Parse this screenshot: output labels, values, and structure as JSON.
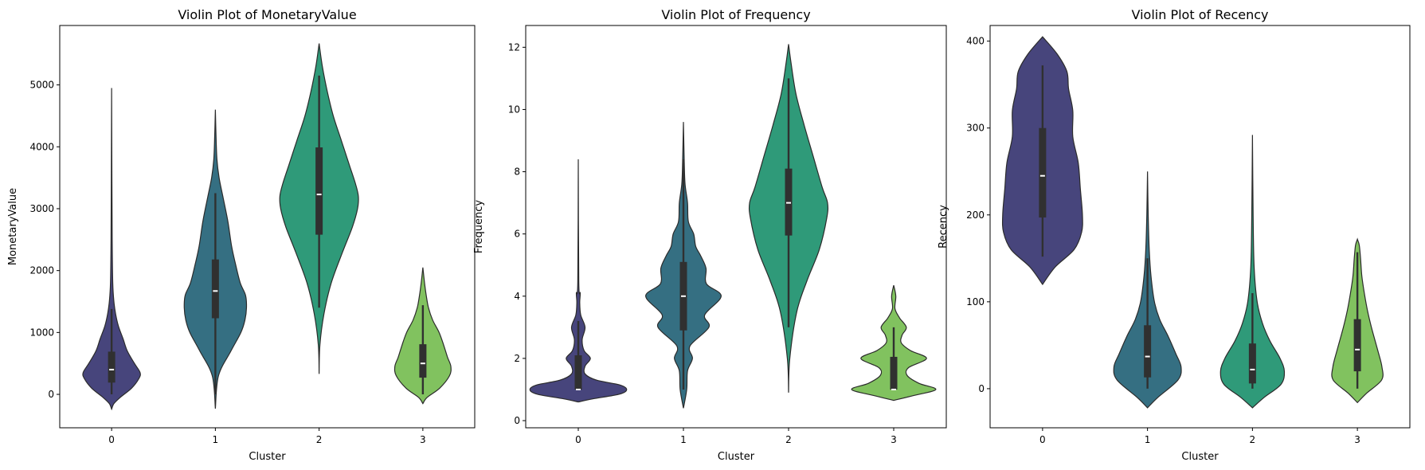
{
  "chart_data": [
    {
      "type": "violin",
      "title": "Violin Plot of MonetaryValue",
      "xlabel": "Cluster",
      "ylabel": "MonetaryValue",
      "categories": [
        "0",
        "1",
        "2",
        "3"
      ],
      "yticks": [
        0,
        1000,
        2000,
        3000,
        4000,
        5000
      ],
      "ylim": [
        -540,
        5960
      ],
      "colors": [
        "#47457c",
        "#356f82",
        "#2f9a79",
        "#81c25f"
      ],
      "violins": [
        {
          "profile": [
            [
              -240,
              0
            ],
            [
              -150,
              0.08
            ],
            [
              -50,
              0.3
            ],
            [
              100,
              0.7
            ],
            [
              250,
              0.95
            ],
            [
              350,
              1.0
            ],
            [
              500,
              0.8
            ],
            [
              700,
              0.55
            ],
            [
              900,
              0.4
            ],
            [
              1100,
              0.24
            ],
            [
              1300,
              0.14
            ],
            [
              1500,
              0.08
            ],
            [
              1800,
              0.04
            ],
            [
              2500,
              0.02
            ],
            [
              3500,
              0.01
            ],
            [
              4950,
              0
            ]
          ],
          "scale": 0.55,
          "box": {
            "q1": 190,
            "median": 400,
            "q3": 690,
            "wlo": 0,
            "whi": 1380
          }
        },
        {
          "profile": [
            [
              -230,
              0
            ],
            [
              300,
              0.1
            ],
            [
              700,
              0.5
            ],
            [
              1000,
              0.82
            ],
            [
              1200,
              0.95
            ],
            [
              1400,
              1.0
            ],
            [
              1600,
              0.97
            ],
            [
              1800,
              0.8
            ],
            [
              2100,
              0.65
            ],
            [
              2400,
              0.52
            ],
            [
              2800,
              0.4
            ],
            [
              3200,
              0.24
            ],
            [
              3500,
              0.12
            ],
            [
              3800,
              0.05
            ],
            [
              4200,
              0.02
            ],
            [
              4600,
              0
            ]
          ],
          "scale": 0.6,
          "box": {
            "q1": 1230,
            "median": 1670,
            "q3": 2180,
            "wlo": 0,
            "whi": 3250
          }
        },
        {
          "profile": [
            [
              330,
              0
            ],
            [
              800,
              0.02
            ],
            [
              1300,
              0.12
            ],
            [
              1800,
              0.3
            ],
            [
              2300,
              0.58
            ],
            [
              2700,
              0.82
            ],
            [
              3000,
              0.95
            ],
            [
              3200,
              0.97
            ],
            [
              3400,
              0.9
            ],
            [
              3700,
              0.75
            ],
            [
              4100,
              0.55
            ],
            [
              4500,
              0.35
            ],
            [
              4900,
              0.2
            ],
            [
              5300,
              0.08
            ],
            [
              5670,
              0
            ]
          ],
          "scale": 0.78,
          "box": {
            "q1": 2580,
            "median": 3230,
            "q3": 3990,
            "wlo": 1400,
            "whi": 5150
          }
        },
        {
          "profile": [
            [
              -150,
              0
            ],
            [
              -50,
              0.15
            ],
            [
              100,
              0.6
            ],
            [
              300,
              0.95
            ],
            [
              450,
              1.0
            ],
            [
              600,
              0.88
            ],
            [
              800,
              0.74
            ],
            [
              1000,
              0.58
            ],
            [
              1200,
              0.35
            ],
            [
              1400,
              0.2
            ],
            [
              1600,
              0.12
            ],
            [
              1800,
              0.06
            ],
            [
              2050,
              0
            ]
          ],
          "scale": 0.54,
          "box": {
            "q1": 270,
            "median": 500,
            "q3": 810,
            "wlo": 0,
            "whi": 1440
          }
        }
      ]
    },
    {
      "type": "violin",
      "title": "Violin Plot of Frequency",
      "xlabel": "Cluster",
      "ylabel": "Frequency",
      "categories": [
        "0",
        "1",
        "2",
        "3"
      ],
      "yticks": [
        0,
        2,
        4,
        6,
        8,
        10,
        12
      ],
      "ylim": [
        -0.23,
        12.7
      ],
      "colors": [
        "#47457c",
        "#356f82",
        "#2f9a79",
        "#81c25f"
      ],
      "violins": [
        {
          "profile": [
            [
              0.6,
              0
            ],
            [
              0.7,
              0.3
            ],
            [
              0.85,
              0.85
            ],
            [
              1.0,
              1.0
            ],
            [
              1.15,
              0.85
            ],
            [
              1.3,
              0.38
            ],
            [
              1.5,
              0.14
            ],
            [
              1.75,
              0.14
            ],
            [
              2.0,
              0.25
            ],
            [
              2.25,
              0.12
            ],
            [
              2.6,
              0.08
            ],
            [
              3.0,
              0.14
            ],
            [
              3.4,
              0.05
            ],
            [
              3.8,
              0.03
            ],
            [
              4.1,
              0.04
            ],
            [
              4.5,
              0.01
            ],
            [
              8.4,
              0
            ]
          ],
          "scale": 0.92,
          "box": {
            "q1": 1.0,
            "median": 1.0,
            "q3": 2.1,
            "wlo": 1.0,
            "whi": 3.2
          }
        },
        {
          "profile": [
            [
              0.4,
              0
            ],
            [
              1.0,
              0.08
            ],
            [
              1.6,
              0.1
            ],
            [
              2.0,
              0.22
            ],
            [
              2.4,
              0.16
            ],
            [
              3.0,
              0.62
            ],
            [
              3.4,
              0.52
            ],
            [
              4.0,
              0.92
            ],
            [
              4.4,
              0.56
            ],
            [
              4.9,
              0.55
            ],
            [
              5.3,
              0.42
            ],
            [
              5.6,
              0.3
            ],
            [
              6.0,
              0.25
            ],
            [
              6.4,
              0.12
            ],
            [
              7.0,
              0.1
            ],
            [
              7.6,
              0.04
            ],
            [
              8.3,
              0.02
            ],
            [
              9.6,
              0
            ]
          ],
          "scale": 0.78,
          "box": {
            "q1": 2.9,
            "median": 4.0,
            "q3": 5.1,
            "wlo": 1.0,
            "whi": 8.4
          }
        },
        {
          "profile": [
            [
              0.9,
              0
            ],
            [
              2.0,
              0.03
            ],
            [
              3.5,
              0.2
            ],
            [
              4.5,
              0.45
            ],
            [
              5.5,
              0.75
            ],
            [
              6.5,
              0.93
            ],
            [
              7.0,
              0.95
            ],
            [
              7.5,
              0.82
            ],
            [
              8.5,
              0.6
            ],
            [
              9.5,
              0.38
            ],
            [
              10.5,
              0.18
            ],
            [
              11.5,
              0.06
            ],
            [
              12.1,
              0
            ]
          ],
          "scale": 0.78,
          "box": {
            "q1": 5.95,
            "median": 7.0,
            "q3": 8.1,
            "wlo": 3.0,
            "whi": 11.0
          }
        },
        {
          "profile": [
            [
              0.65,
              0
            ],
            [
              0.8,
              0.45
            ],
            [
              1.0,
              1.0
            ],
            [
              1.2,
              0.6
            ],
            [
              1.45,
              0.32
            ],
            [
              1.7,
              0.35
            ],
            [
              2.0,
              0.78
            ],
            [
              2.25,
              0.4
            ],
            [
              2.5,
              0.18
            ],
            [
              2.75,
              0.2
            ],
            [
              3.0,
              0.3
            ],
            [
              3.3,
              0.14
            ],
            [
              3.6,
              0.03
            ],
            [
              4.0,
              0.05
            ],
            [
              4.35,
              0
            ]
          ],
          "scale": 0.8,
          "box": {
            "q1": 1.0,
            "median": 1.0,
            "q3": 2.05,
            "wlo": 1.0,
            "whi": 3.0
          }
        }
      ]
    },
    {
      "type": "violin",
      "title": "Violin Plot of Recency",
      "xlabel": "Cluster",
      "ylabel": "Recency",
      "categories": [
        "0",
        "1",
        "2",
        "3"
      ],
      "yticks": [
        0,
        100,
        200,
        300,
        400
      ],
      "ylim": [
        -45,
        418
      ],
      "colors": [
        "#47457c",
        "#356f82",
        "#2f9a79",
        "#81c25f"
      ],
      "violins": [
        {
          "profile": [
            [
              120,
              0
            ],
            [
              140,
              0.3
            ],
            [
              160,
              0.75
            ],
            [
              180,
              0.93
            ],
            [
              200,
              0.95
            ],
            [
              230,
              0.9
            ],
            [
              260,
              0.85
            ],
            [
              290,
              0.72
            ],
            [
              320,
              0.72
            ],
            [
              345,
              0.62
            ],
            [
              365,
              0.58
            ],
            [
              385,
              0.35
            ],
            [
              405,
              0
            ]
          ],
          "scale": 0.8,
          "box": {
            "q1": 197,
            "median": 245,
            "q3": 300,
            "wlo": 152,
            "whi": 372
          }
        },
        {
          "profile": [
            [
              -22,
              0
            ],
            [
              -10,
              0.3
            ],
            [
              10,
              0.88
            ],
            [
              25,
              0.97
            ],
            [
              40,
              0.82
            ],
            [
              60,
              0.6
            ],
            [
              80,
              0.35
            ],
            [
              100,
              0.2
            ],
            [
              130,
              0.1
            ],
            [
              160,
              0.05
            ],
            [
              200,
              0.02
            ],
            [
              250,
              0
            ]
          ],
          "scale": 0.66,
          "box": {
            "q1": 13,
            "median": 37,
            "q3": 73,
            "wlo": 0,
            "whi": 150
          }
        },
        {
          "profile": [
            [
              -22,
              0
            ],
            [
              -10,
              0.35
            ],
            [
              5,
              0.85
            ],
            [
              20,
              0.95
            ],
            [
              35,
              0.82
            ],
            [
              55,
              0.52
            ],
            [
              75,
              0.3
            ],
            [
              100,
              0.14
            ],
            [
              140,
              0.05
            ],
            [
              200,
              0.02
            ],
            [
              292,
              0
            ]
          ],
          "scale": 0.64,
          "box": {
            "q1": 6,
            "median": 22,
            "q3": 52,
            "wlo": 0,
            "whi": 110
          }
        },
        {
          "profile": [
            [
              -16,
              0
            ],
            [
              -5,
              0.3
            ],
            [
              10,
              0.77
            ],
            [
              25,
              0.78
            ],
            [
              45,
              0.64
            ],
            [
              70,
              0.45
            ],
            [
              90,
              0.32
            ],
            [
              110,
              0.22
            ],
            [
              130,
              0.14
            ],
            [
              150,
              0.1
            ],
            [
              165,
              0.06
            ],
            [
              172,
              0
            ]
          ],
          "scale": 0.6,
          "box": {
            "q1": 20,
            "median": 45,
            "q3": 80,
            "wlo": 0,
            "whi": 157
          }
        }
      ]
    }
  ]
}
